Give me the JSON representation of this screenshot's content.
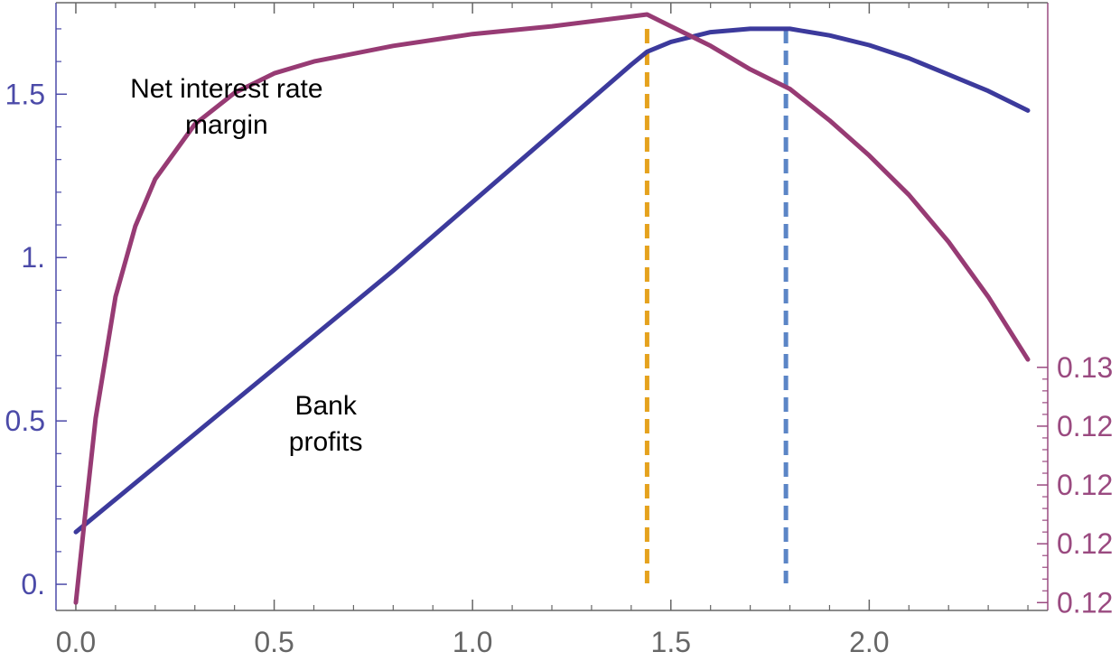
{
  "chart_data": {
    "type": "line",
    "title": "",
    "xlabel": "",
    "ylabel": "",
    "xlim": [
      -0.05,
      2.45
    ],
    "ylim_left": [
      -0.08,
      1.78
    ],
    "ylim_right": [
      0.1198,
      0.1353
    ],
    "x_ticks": [
      "0.0",
      "0.5",
      "1.0",
      "1.5",
      "2.0"
    ],
    "x_tick_values": [
      0.0,
      0.5,
      1.0,
      1.5,
      2.0
    ],
    "y_left_ticks": [
      "0.",
      "0.5",
      "1.",
      "1.5"
    ],
    "y_left_tick_values": [
      0.0,
      0.5,
      1.0,
      1.5
    ],
    "y_right_ticks": [
      "0.12",
      "0.12",
      "0.12",
      "0.12",
      "0.13"
    ],
    "y_right_tick_values": [
      0.12,
      0.1215,
      0.123,
      0.1245,
      0.126
    ],
    "colors": {
      "bank_profits": "#3c3a9c",
      "net_interest_margin": "#973b74",
      "margin_peak_line": "#e5a21d",
      "profit_peak_line": "#5b85c6",
      "left_axis": "#4b4aa8",
      "right_axis": "#9a4a80",
      "bottom_axis": "#666666"
    },
    "series": [
      {
        "name": "Bank profits",
        "axis": "left",
        "x": [
          0.0,
          0.2,
          0.4,
          0.6,
          0.8,
          1.0,
          1.2,
          1.4,
          1.44,
          1.5,
          1.6,
          1.7,
          1.8,
          1.9,
          2.0,
          2.1,
          2.2,
          2.3,
          2.4
        ],
        "y": [
          0.16,
          0.36,
          0.56,
          0.76,
          0.96,
          1.17,
          1.38,
          1.59,
          1.63,
          1.66,
          1.69,
          1.7,
          1.7,
          1.68,
          1.65,
          1.61,
          1.56,
          1.51,
          1.45
        ]
      },
      {
        "name": "Net interest rate margin",
        "axis": "right",
        "x": [
          0.0,
          0.02,
          0.05,
          0.1,
          0.15,
          0.2,
          0.3,
          0.4,
          0.5,
          0.6,
          0.8,
          1.0,
          1.2,
          1.44,
          1.5,
          1.6,
          1.7,
          1.8,
          1.9,
          2.0,
          2.1,
          2.2,
          2.3,
          2.4
        ],
        "y": [
          0.12,
          0.1219,
          0.1247,
          0.1278,
          0.1296,
          0.1308,
          0.1322,
          0.133,
          0.1335,
          0.1338,
          0.1342,
          0.1345,
          0.1347,
          0.135,
          0.1347,
          0.1342,
          0.1336,
          0.1331,
          0.1323,
          0.1314,
          0.1304,
          0.1292,
          0.1278,
          0.1262
        ]
      }
    ],
    "vertical_lines": [
      {
        "x": 1.44,
        "color": "#e5a21d",
        "style": "dashed"
      },
      {
        "x": 1.79,
        "color": "#5b85c6",
        "style": "dashed"
      }
    ],
    "annotations": [
      {
        "lines": [
          "Net interest rate",
          "margin"
        ],
        "x": 0.38,
        "y": 1.49
      },
      {
        "lines": [
          "Bank",
          "profits"
        ],
        "x": 0.63,
        "y": 0.52
      }
    ]
  }
}
